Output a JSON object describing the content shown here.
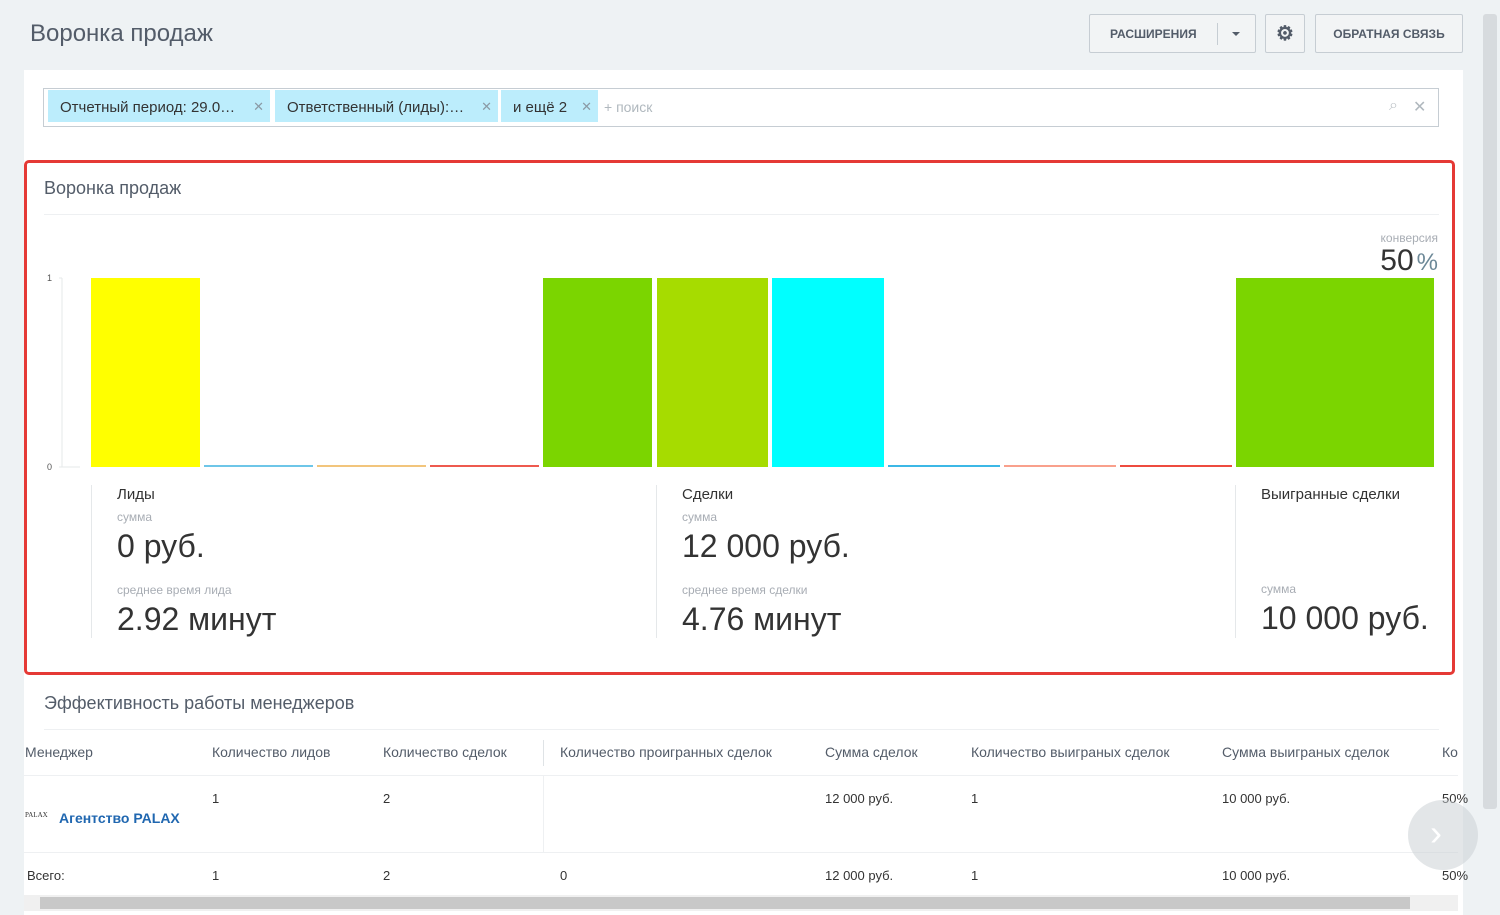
{
  "header": {
    "title": "Воронка продаж",
    "extensions_button": "РАСШИРЕНИЯ",
    "feedback_button": "ОБРАТНАЯ СВЯЗЬ"
  },
  "filter": {
    "tags": [
      "Отчетный период: 29.0…",
      "Ответственный (лиды):…",
      "и ещё 2"
    ],
    "placeholder": "+ поиск"
  },
  "funnel": {
    "title": "Воронка продаж",
    "conversion_label": "конверсия",
    "conversion_value": 50,
    "conversion_unit": "%",
    "stats": [
      {
        "title": "Лиды",
        "sum_label": "сумма",
        "sum": "0 руб.",
        "time_label": "среднее время лида",
        "time": "2.92 минут"
      },
      {
        "title": "Сделки",
        "sum_label": "сумма",
        "sum": "12 000 руб.",
        "time_label": "среднее время сделки",
        "time": "4.76 минут"
      },
      {
        "title": "Выигранные сделки",
        "sum_label": "сумма",
        "sum": "10 000 руб."
      }
    ]
  },
  "chart_data": {
    "type": "bar",
    "ylim": [
      0,
      1
    ],
    "yticks": [
      0,
      1
    ],
    "values": [
      1,
      0,
      0,
      0,
      1,
      1,
      1,
      0,
      0,
      0,
      1
    ],
    "colors": [
      "#ffff00",
      "#6ec6e8",
      "#f2c57c",
      "#ee5a4f",
      "#7bd500",
      "#a6dc00",
      "#00ffff",
      "#3cb8e6",
      "#f9a08c",
      "#ee4b3f",
      "#7bd500"
    ]
  },
  "managers": {
    "title": "Эффективность работы менеджеров",
    "columns": [
      "Менеджер",
      "Количество лидов",
      "Количество сделок",
      "Количество проигранных сделок",
      "Сумма сделок",
      "Количество выиграных сделок",
      "Сумма выиграных сделок",
      "Ко"
    ],
    "logo": "PALAX",
    "rows": [
      [
        "Агентство PALAX",
        "1",
        "2",
        null,
        "12 000 руб.",
        "1",
        "10 000 руб.",
        "50%"
      ],
      [
        "Всего:",
        "1",
        "2",
        "0",
        "12 000 руб.",
        "1",
        "10 000 руб.",
        "50%"
      ]
    ]
  }
}
